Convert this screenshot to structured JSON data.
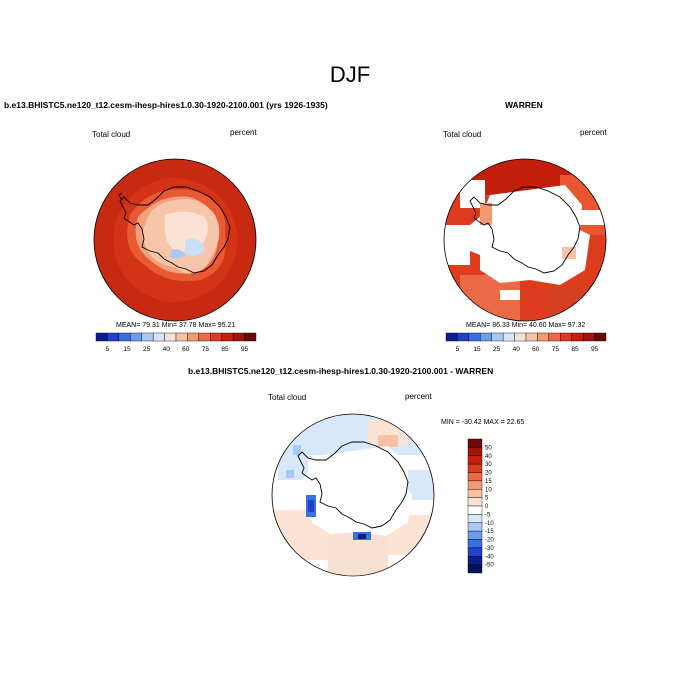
{
  "title": "DJF",
  "colors": {
    "frame": "#000000",
    "background": "#ffffff"
  },
  "panels": [
    {
      "title": "b.e13.BHISTC5.ne120_t12.cesm-ihesp-hires1.0.30-1920-2100.001 (yrs 1926-1935)",
      "left_label": "Total cloud",
      "right_label": "percent",
      "stats": "MEAN=  79.31  Min=  37.78  Max=  95.21",
      "mean": 79.31,
      "min": 37.78,
      "max": 95.21
    },
    {
      "title": "WARREN",
      "left_label": "Total cloud",
      "right_label": "percent",
      "stats": "MEAN=  86.33  Min=  40.60  Max=  97.32",
      "mean": 86.33,
      "min": 40.6,
      "max": 97.32
    },
    {
      "title": "b.e13.BHISTC5.ne120_t12.cesm-ihesp-hires1.0.30-1920-2100.001 - WARREN",
      "left_label": "Total cloud",
      "right_label": "percent",
      "stats": "MIN = -30.42  MAX =  22.65",
      "min": -30.42,
      "max": 22.65
    }
  ],
  "abs_colorbar": {
    "labels": [
      "5",
      "15",
      "25",
      "40",
      "60",
      "75",
      "85",
      "95"
    ],
    "colors": [
      "#0a1e8c",
      "#1f42c8",
      "#3a6fe0",
      "#6a9cf0",
      "#a6c9f7",
      "#d4e6fb",
      "#f9e2d4",
      "#f7c2a4",
      "#f29b73",
      "#ea6a45",
      "#dd3c1e",
      "#c41f0a",
      "#a0140a",
      "#6e0a05"
    ]
  },
  "diff_colorbar": {
    "labels": [
      "50",
      "40",
      "30",
      "20",
      "15",
      "10",
      "5",
      "0",
      "-5",
      "-10",
      "-15",
      "-20",
      "-30",
      "-40",
      "-50"
    ],
    "colors": [
      "#6e0a05",
      "#a0140a",
      "#c41f0a",
      "#dd3c1e",
      "#ea6a45",
      "#f29b73",
      "#f7c2a4",
      "#fbe4d6",
      "#ffffff",
      "#d8e8fb",
      "#a6c9f7",
      "#6a9cf0",
      "#3a6fe0",
      "#1f42c8",
      "#0a1e8c",
      "#050f5a"
    ]
  }
}
